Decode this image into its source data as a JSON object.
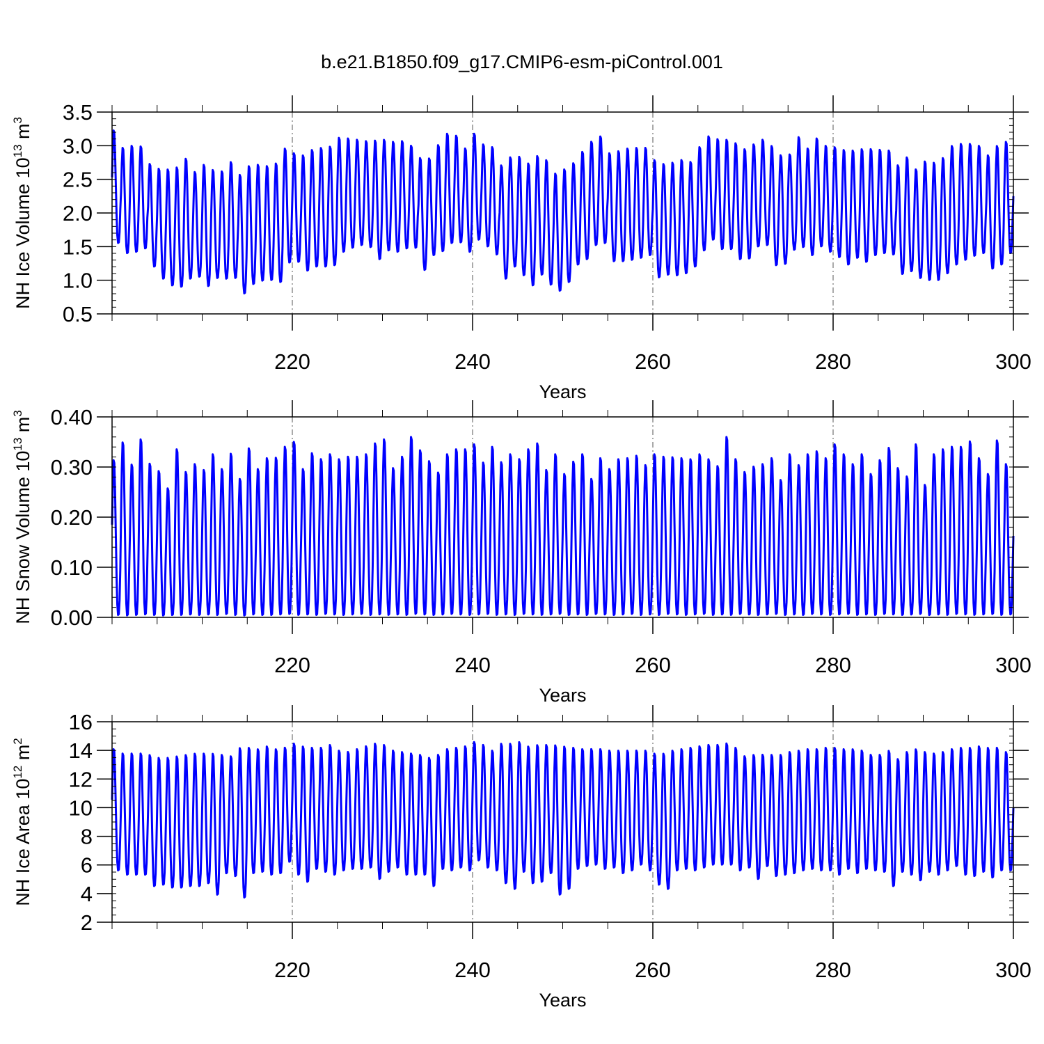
{
  "title": "b.e21.B1850.f09_g17.CMIP6-esm-piControl.001",
  "series_color": "#0000ff",
  "chart_data": [
    {
      "type": "line",
      "name": "ice-volume",
      "ylabel_main": "NH Ice Volume 10",
      "ylabel_exp": "13",
      "ylabel_unit": " m",
      "ylabel_unit_exp": "3",
      "xlabel": "Years",
      "xlim": [
        200,
        300
      ],
      "ylim": [
        0.5,
        3.5
      ],
      "y_ticks": [
        0.5,
        1.0,
        1.5,
        2.0,
        2.5,
        3.0,
        3.5
      ],
      "y_tick_labels": [
        "0.5",
        "1.0",
        "1.5",
        "2.0",
        "2.5",
        "3.0",
        "3.5"
      ],
      "y_minor_step": 0.1,
      "x_ticks": [
        220,
        240,
        260,
        280,
        300
      ],
      "x_tick_labels": [
        "220",
        "240",
        "260",
        "280",
        "300"
      ],
      "x_minor_step": 5,
      "grid_x": [
        220,
        240,
        260,
        280
      ],
      "months_per_year": 12,
      "annual_max": [
        3.25,
        2.99,
        3.02,
        3.01,
        2.75,
        2.68,
        2.67,
        2.7,
        2.83,
        2.63,
        2.74,
        2.66,
        2.64,
        2.78,
        2.59,
        2.72,
        2.74,
        2.72,
        2.76,
        2.98,
        2.91,
        2.88,
        2.96,
        2.99,
        3.01,
        3.14,
        3.13,
        3.11,
        3.09,
        3.1,
        3.11,
        3.08,
        3.09,
        3.02,
        2.84,
        2.83,
        3.03,
        3.2,
        3.17,
        2.98,
        3.2,
        3.04,
        3.0,
        2.73,
        2.85,
        2.86,
        2.76,
        2.87,
        2.81,
        2.61,
        2.67,
        2.76,
        2.93,
        3.08,
        3.16,
        2.91,
        2.94,
        2.98,
        2.99,
        2.99,
        2.81,
        2.75,
        2.77,
        2.81,
        2.78,
        3.0,
        3.16,
        3.12,
        3.11,
        3.06,
        2.97,
        3.04,
        3.11,
        3.02,
        2.88,
        2.89,
        3.15,
        2.98,
        3.13,
        3.02,
        3.0,
        2.96,
        2.95,
        2.97,
        2.97,
        2.96,
        2.95,
        2.73,
        2.85,
        2.67,
        2.79,
        2.77,
        2.84,
        3.02,
        3.05,
        3.05,
        3.02,
        2.88,
        3.02,
        3.08,
        3.12
      ],
      "annual_min": [
        1.55,
        1.4,
        1.42,
        1.47,
        1.2,
        1.02,
        0.92,
        0.9,
        1.02,
        1.05,
        0.91,
        1.03,
        1.02,
        1.03,
        0.8,
        0.94,
        0.99,
        1.0,
        0.97,
        1.26,
        1.27,
        1.14,
        1.2,
        1.2,
        1.22,
        1.42,
        1.48,
        1.52,
        1.49,
        1.31,
        1.44,
        1.42,
        1.47,
        1.48,
        1.15,
        1.37,
        1.43,
        1.55,
        1.56,
        1.42,
        1.6,
        1.5,
        1.38,
        1.02,
        1.2,
        1.07,
        0.92,
        1.08,
        0.93,
        0.84,
        0.97,
        1.23,
        1.31,
        1.52,
        1.55,
        1.28,
        1.28,
        1.3,
        1.33,
        1.37,
        1.04,
        1.08,
        1.07,
        1.1,
        1.2,
        1.44,
        1.6,
        1.46,
        1.46,
        1.31,
        1.32,
        1.5,
        1.52,
        1.22,
        1.24,
        1.45,
        1.49,
        1.37,
        1.5,
        1.42,
        1.34,
        1.23,
        1.33,
        1.27,
        1.37,
        1.4,
        1.38,
        1.09,
        1.13,
        1.03,
        1.0,
        1.0,
        1.1,
        1.23,
        1.3,
        1.36,
        1.4,
        1.17,
        1.23,
        1.4,
        1.38
      ]
    },
    {
      "type": "line",
      "name": "snow-volume",
      "ylabel_main": "NH Snow Volume 10",
      "ylabel_exp": "13",
      "ylabel_unit": " m",
      "ylabel_unit_exp": "3",
      "xlabel": "Years",
      "xlim": [
        200,
        300
      ],
      "ylim": [
        0.0,
        0.4
      ],
      "y_ticks": [
        0.0,
        0.1,
        0.2,
        0.3,
        0.4
      ],
      "y_tick_labels": [
        "0.00",
        "0.10",
        "0.20",
        "0.30",
        "0.40"
      ],
      "y_minor_step": 0.02,
      "x_ticks": [
        220,
        240,
        260,
        280,
        300
      ],
      "x_tick_labels": [
        "220",
        "240",
        "260",
        "280",
        "300"
      ],
      "x_minor_step": 5,
      "grid_x": [
        220,
        240,
        260,
        280
      ],
      "months_per_year": 12,
      "annual_max": [
        0.318,
        0.354,
        0.309,
        0.36,
        0.311,
        0.296,
        0.261,
        0.34,
        0.294,
        0.31,
        0.298,
        0.33,
        0.3,
        0.331,
        0.28,
        0.342,
        0.3,
        0.322,
        0.323,
        0.345,
        0.355,
        0.3,
        0.332,
        0.32,
        0.33,
        0.32,
        0.325,
        0.325,
        0.33,
        0.352,
        0.36,
        0.302,
        0.325,
        0.365,
        0.338,
        0.316,
        0.293,
        0.33,
        0.34,
        0.34,
        0.35,
        0.313,
        0.345,
        0.314,
        0.33,
        0.32,
        0.34,
        0.352,
        0.298,
        0.33,
        0.29,
        0.315,
        0.33,
        0.28,
        0.322,
        0.3,
        0.32,
        0.322,
        0.327,
        0.308,
        0.33,
        0.325,
        0.324,
        0.322,
        0.32,
        0.33,
        0.32,
        0.306,
        0.365,
        0.32,
        0.294,
        0.305,
        0.31,
        0.322,
        0.278,
        0.33,
        0.308,
        0.33,
        0.336,
        0.322,
        0.35,
        0.33,
        0.31,
        0.33,
        0.29,
        0.318,
        0.343,
        0.302,
        0.285,
        0.35,
        0.268,
        0.33,
        0.34,
        0.345,
        0.345,
        0.356,
        0.322,
        0.29,
        0.358,
        0.31,
        0.32
      ],
      "annual_min": [
        0.004,
        0.003,
        0.004,
        0.005,
        0.004,
        0.003,
        0.004,
        0.004,
        0.005,
        0.004,
        0.005,
        0.004,
        0.006,
        0.004,
        0.003,
        0.005,
        0.004,
        0.004,
        0.005,
        0.006,
        0.004,
        0.005,
        0.004,
        0.006,
        0.005,
        0.004,
        0.005,
        0.006,
        0.004,
        0.005,
        0.004,
        0.005,
        0.004,
        0.006,
        0.005,
        0.004,
        0.005,
        0.006,
        0.005,
        0.004,
        0.005,
        0.006,
        0.004,
        0.005,
        0.004,
        0.006,
        0.005,
        0.004,
        0.005,
        0.006,
        0.004,
        0.005,
        0.004,
        0.006,
        0.005,
        0.004,
        0.005,
        0.006,
        0.004,
        0.005,
        0.004,
        0.006,
        0.005,
        0.004,
        0.005,
        0.006,
        0.004,
        0.005,
        0.004,
        0.006,
        0.005,
        0.004,
        0.005,
        0.006,
        0.004,
        0.005,
        0.004,
        0.006,
        0.005,
        0.004,
        0.005,
        0.006,
        0.004,
        0.005,
        0.004,
        0.006,
        0.005,
        0.004,
        0.005,
        0.006,
        0.004,
        0.005,
        0.004,
        0.006,
        0.005,
        0.004,
        0.005,
        0.006,
        0.004,
        0.005,
        0.005
      ]
    },
    {
      "type": "line",
      "name": "ice-area",
      "ylabel_main": "NH Ice Area 10",
      "ylabel_exp": "12",
      "ylabel_unit": " m",
      "ylabel_unit_exp": "2",
      "xlabel": "Years",
      "xlim": [
        200,
        300
      ],
      "ylim": [
        2,
        16
      ],
      "y_ticks": [
        2,
        4,
        6,
        8,
        10,
        12,
        14,
        16
      ],
      "y_tick_labels": [
        "2",
        "4",
        "6",
        "8",
        "10",
        "12",
        "14",
        "16"
      ],
      "y_minor_step": 0.5,
      "x_ticks": [
        220,
        240,
        260,
        280,
        300
      ],
      "x_tick_labels": [
        "220",
        "240",
        "260",
        "280",
        "300"
      ],
      "x_minor_step": 5,
      "grid_x": [
        220,
        240,
        260,
        280
      ],
      "months_per_year": 12,
      "annual_max": [
        14.2,
        13.9,
        13.9,
        13.9,
        13.8,
        13.6,
        13.6,
        13.7,
        13.8,
        13.9,
        13.9,
        13.9,
        13.8,
        13.7,
        14.3,
        14.3,
        14.2,
        14.4,
        14.2,
        14.3,
        14.6,
        14.4,
        14.3,
        14.3,
        14.5,
        14.1,
        14.0,
        14.2,
        14.4,
        14.6,
        14.5,
        14.1,
        14.0,
        13.9,
        13.8,
        13.6,
        13.8,
        14.2,
        14.3,
        14.4,
        14.7,
        14.5,
        14.1,
        14.6,
        14.6,
        14.7,
        14.4,
        14.5,
        14.5,
        14.5,
        14.4,
        14.3,
        14.2,
        14.2,
        14.2,
        14.1,
        14.1,
        14.1,
        14.1,
        14.1,
        13.9,
        13.9,
        14.1,
        14.2,
        14.3,
        14.4,
        14.5,
        14.5,
        14.6,
        14.3,
        13.7,
        13.8,
        13.8,
        13.8,
        13.8,
        14.0,
        14.1,
        14.2,
        14.2,
        14.3,
        14.3,
        14.2,
        14.2,
        14.1,
        13.8,
        13.8,
        14.1,
        13.5,
        14.0,
        14.2,
        14.0,
        13.9,
        14.0,
        14.2,
        14.3,
        14.3,
        14.4,
        14.3,
        14.3,
        14.0,
        14.4
      ],
      "annual_min": [
        5.6,
        5.3,
        5.3,
        5.3,
        4.5,
        4.6,
        4.4,
        4.4,
        4.5,
        4.5,
        4.7,
        3.9,
        5.4,
        5.2,
        3.7,
        5.4,
        5.5,
        5.3,
        5.4,
        6.2,
        5.3,
        4.8,
        5.7,
        5.5,
        5.3,
        5.6,
        5.7,
        5.7,
        5.8,
        5.0,
        5.5,
        5.8,
        5.3,
        5.3,
        5.3,
        4.5,
        5.7,
        5.6,
        5.8,
        5.6,
        6.3,
        5.8,
        5.6,
        4.7,
        4.3,
        5.5,
        4.7,
        4.8,
        5.4,
        3.9,
        4.3,
        5.7,
        5.9,
        6.0,
        5.7,
        5.8,
        5.4,
        5.6,
        6.0,
        5.6,
        4.6,
        4.3,
        5.6,
        5.7,
        5.6,
        5.8,
        6.0,
        6.0,
        6.0,
        5.6,
        5.8,
        5.0,
        5.9,
        5.2,
        5.3,
        5.4,
        5.6,
        5.7,
        5.6,
        5.6,
        5.3,
        5.7,
        5.4,
        5.7,
        5.6,
        5.5,
        4.5,
        5.5,
        5.3,
        4.9,
        5.5,
        5.3,
        5.6,
        5.9,
        5.3,
        5.2,
        5.5,
        5.1,
        5.6,
        5.6,
        5.6
      ]
    }
  ]
}
